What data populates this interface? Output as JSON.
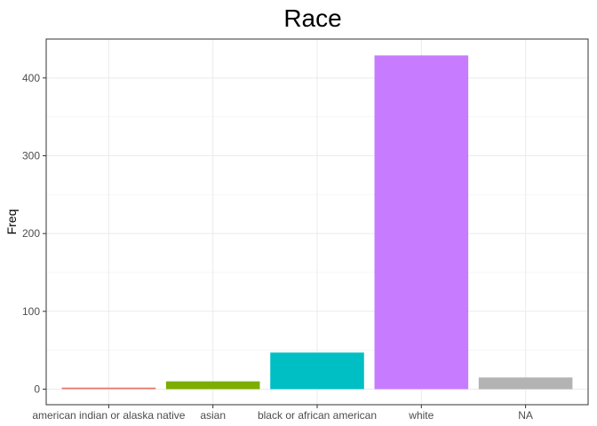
{
  "chart_data": {
    "type": "bar",
    "title": "Race",
    "xlabel": "",
    "ylabel": "Freq",
    "categories": [
      "american indian or alaska native",
      "asian",
      "black or african american",
      "white",
      "NA"
    ],
    "values": [
      2,
      10,
      47,
      429,
      15
    ],
    "colors": [
      "#F8766D",
      "#A3A500",
      "#00BFC4",
      "#E76BF3",
      "#B3B3B3"
    ],
    "bar_colors": [
      "#E9786C",
      "#7CAE00",
      "#00BFC4",
      "#C77CFF",
      "#B3B3B3"
    ],
    "ylim": [
      -20,
      450
    ],
    "yticks": [
      0,
      100,
      200,
      300,
      400
    ],
    "ytick_labels": [
      "0",
      "100",
      "200",
      "300",
      "400"
    ],
    "grid": true,
    "legend": "none"
  }
}
